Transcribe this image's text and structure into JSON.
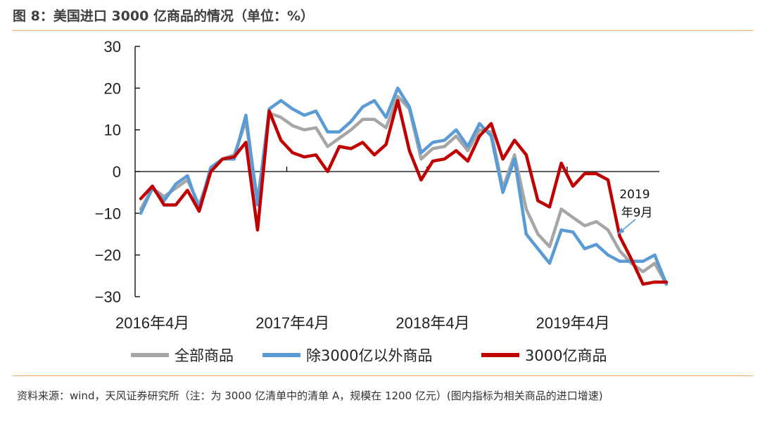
{
  "figure": {
    "title": "图 8：美国进口 3000 亿商品的情况（单位：%）",
    "source": "资料来源：wind，天风证券研究所（注：为 3000 亿清单中的清单 A，规模在 1200 亿元）(图内指标为相关商品的进口增速)"
  },
  "chart_data": {
    "type": "line",
    "title": "美国进口 3000 亿商品的情况",
    "xlabel": "",
    "ylabel": "",
    "ylim": [
      -30,
      30
    ],
    "yticks": [
      30,
      20,
      10,
      0,
      -10,
      -20,
      -30
    ],
    "xtick_labels": [
      "2016年4月",
      "2017年4月",
      "2018年4月",
      "2019年4月"
    ],
    "x": [
      "2016-03",
      "2016-04",
      "2016-05",
      "2016-06",
      "2016-07",
      "2016-08",
      "2016-09",
      "2016-10",
      "2016-11",
      "2016-12",
      "2017-01",
      "2017-02",
      "2017-03",
      "2017-04",
      "2017-05",
      "2017-06",
      "2017-07",
      "2017-08",
      "2017-09",
      "2017-10",
      "2017-11",
      "2017-12",
      "2018-01",
      "2018-02",
      "2018-03",
      "2018-04",
      "2018-05",
      "2018-06",
      "2018-07",
      "2018-08",
      "2018-09",
      "2018-10",
      "2018-11",
      "2018-12",
      "2019-01",
      "2019-02",
      "2019-03",
      "2019-04",
      "2019-05",
      "2019-06",
      "2019-07",
      "2019-08",
      "2019-09",
      "2019-10",
      "2019-11",
      "2019-12"
    ],
    "series": [
      {
        "name": "全部商品",
        "color": "#a6a6a6",
        "values": [
          -9,
          -4,
          -6,
          -4,
          -2,
          -8,
          0,
          3,
          4,
          12,
          -7,
          14,
          13,
          11,
          10,
          10.5,
          6,
          8,
          10,
          12.5,
          12.5,
          10.5,
          18,
          15,
          3,
          5.5,
          6,
          8.5,
          5,
          10,
          9.5,
          -4,
          4,
          -9,
          -15,
          -18,
          -9,
          -11,
          -13,
          -12,
          -14,
          -19,
          -22,
          -24,
          -22,
          -27
        ]
      },
      {
        "name": "除3000亿以外商品",
        "color": "#5b9bd5",
        "values": [
          -10,
          -4,
          -7,
          -3,
          -1,
          -9,
          1,
          3,
          3,
          13.5,
          -8,
          15,
          17,
          15,
          13.5,
          14.5,
          9.5,
          9.5,
          12,
          15.5,
          17,
          13,
          20,
          15.5,
          4.5,
          7,
          7.5,
          10,
          6,
          11.5,
          8.5,
          -5,
          3,
          -15,
          -18.5,
          -22,
          -14,
          -14.5,
          -18.5,
          -17.5,
          -20,
          -21.5,
          -21.5,
          -21.5,
          -20,
          -27
        ]
      },
      {
        "name": "3000亿商品",
        "color": "#c00000",
        "values": [
          -6.5,
          -3.5,
          -8,
          -8,
          -4.5,
          -9.5,
          0,
          3,
          3.5,
          7,
          -14,
          14.5,
          7.5,
          4.5,
          3.5,
          4,
          0,
          6,
          5.5,
          7,
          4,
          6.5,
          17,
          5,
          -2,
          2.5,
          3,
          5,
          2.5,
          8.5,
          11.5,
          3,
          7.5,
          4,
          -7,
          -8.5,
          2,
          -3.5,
          -0.5,
          -0.5,
          -2,
          -15.5,
          -21,
          -27,
          -26.5,
          -26.5
        ]
      }
    ],
    "annotation": {
      "line1": "2019",
      "line2": "年9月",
      "points_to": "2019-09"
    },
    "grid": false,
    "legend": "bottom"
  }
}
